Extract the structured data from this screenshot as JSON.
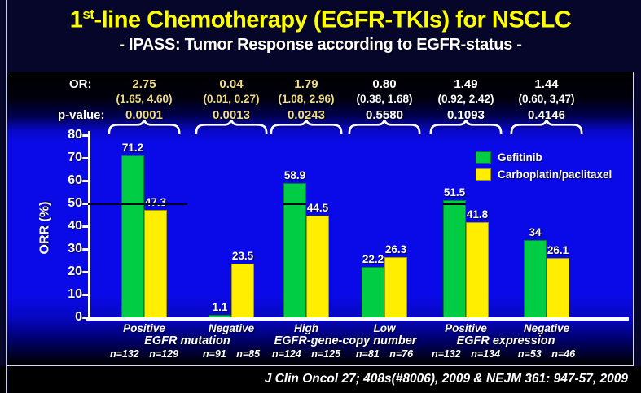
{
  "title": {
    "num": "1",
    "sup": "st",
    "rest": "-line Chemotherapy (EGFR-TKIs) for NSCLC"
  },
  "subtitle": "- IPASS: Tumor Response according to EGFR-status -",
  "stats": {
    "or_label": "OR:",
    "p_label": "p-value:",
    "columns": [
      {
        "or": "2.75",
        "ci": "(1.65, 4.60)",
        "p": "0.0001",
        "highlight": true
      },
      {
        "or": "0.04",
        "ci": "(0.01, 0.27)",
        "p": "0.0013",
        "highlight": true
      },
      {
        "or": "1.79",
        "ci": "(1.08, 2.96)",
        "p": "0.0243",
        "highlight": true
      },
      {
        "or": "0.80",
        "ci": "(0.38, 1.68)",
        "p": "0.5580",
        "highlight": false
      },
      {
        "or": "1.49",
        "ci": "(0.92, 2.42)",
        "p": "0.1093",
        "highlight": false
      },
      {
        "or": "1.44",
        "ci": "(0.60, 3,47)",
        "p": "0.4146",
        "highlight": false
      }
    ]
  },
  "chart_data": {
    "type": "bar",
    "ylabel": "ORR (%)",
    "ylim": [
      0,
      80
    ],
    "yticks": [
      0,
      10,
      20,
      30,
      40,
      50,
      60,
      70,
      80
    ],
    "grid": false,
    "legend_position": "top-right",
    "reference_line": 50,
    "categories": [
      "Positive",
      "Negative",
      "High",
      "Low",
      "Positive",
      "Negative"
    ],
    "group_headers": [
      "EGFR mutation",
      "EGFR-gene-copy number",
      "EGFR expression"
    ],
    "n_labels": [
      "n=132 n=129",
      "n=91 n=85",
      "n=124 n=125",
      "n=81 n=76",
      "n=132 n=134",
      "n=53 n=46"
    ],
    "series": [
      {
        "name": "Gefitinib",
        "color": "#00cc44",
        "values": [
          71.2,
          1.1,
          58.9,
          22.2,
          51.5,
          34
        ],
        "labels": [
          "71.2",
          "1.1",
          "58.9",
          "22.2",
          "51.5",
          "34"
        ]
      },
      {
        "name": "Carboplatin/paclitaxel",
        "color": "#ffee00",
        "values": [
          47.3,
          23.5,
          44.5,
          26.3,
          41.8,
          26.1
        ],
        "labels": [
          "47.3",
          "23.5",
          "44.5",
          "26.3",
          "41.8",
          "26.1"
        ]
      }
    ]
  },
  "footer": "J Clin Oncol 27; 408s(#8006), 2009 & NEJM 361: 947-57, 2009",
  "colors": {
    "title": "#ffff00",
    "plot_background": "#0a0ae8",
    "gefitinib": "#00cc44",
    "chemo": "#ffee00",
    "stat_highlight": "#f0dc86"
  }
}
